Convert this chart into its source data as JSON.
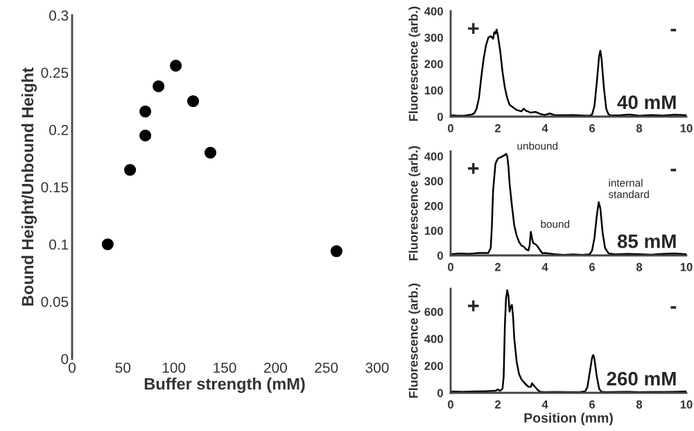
{
  "chart_data": [
    {
      "type": "scatter",
      "xlabel": "Buffer strength (mM)",
      "ylabel": "Bound Height/Unbound Height",
      "xlim": [
        0,
        300
      ],
      "ylim": [
        0,
        0.3
      ],
      "xticks": [
        0,
        50,
        100,
        150,
        200,
        250,
        300
      ],
      "yticks": [
        0,
        0.05,
        0.1,
        0.15,
        0.2,
        0.25,
        0.3
      ],
      "marker": "circle",
      "grid": false,
      "series": [
        {
          "color": "#000000",
          "x": [
            35,
            57,
            72,
            72,
            85,
            102,
            119,
            136,
            260
          ],
          "values": [
            0.1,
            0.165,
            0.195,
            0.216,
            0.238,
            0.256,
            0.225,
            0.18,
            0.094
          ]
        }
      ]
    },
    {
      "type": "line",
      "ylabel": "Fluorescence (arb.)",
      "xlim": [
        0,
        10
      ],
      "ylim": [
        0,
        400
      ],
      "xticks": [
        0,
        2,
        4,
        6,
        8,
        10
      ],
      "yticks": [
        0,
        100,
        200,
        300,
        400
      ],
      "grid": false,
      "annotations": [
        "+",
        "-",
        "40 mM"
      ],
      "series": [
        {
          "color": "#000000",
          "x": [
            0,
            0.3,
            0.6,
            0.9,
            1.0,
            1.1,
            1.2,
            1.3,
            1.4,
            1.5,
            1.6,
            1.7,
            1.8,
            1.85,
            1.9,
            1.95,
            2.0,
            2.1,
            2.2,
            2.3,
            2.4,
            2.5,
            2.6,
            2.8,
            3.0,
            3.1,
            3.2,
            3.4,
            3.6,
            3.8,
            4.0,
            4.2,
            4.4,
            4.8,
            5.2,
            5.6,
            5.9,
            6.0,
            6.1,
            6.2,
            6.3,
            6.35,
            6.4,
            6.5,
            6.6,
            6.7,
            6.8,
            7.2,
            7.6,
            8.0,
            8.5,
            9.0,
            9.5,
            10
          ],
          "values": [
            5,
            3,
            4,
            8,
            12,
            30,
            70,
            150,
            220,
            270,
            300,
            305,
            295,
            320,
            315,
            330,
            310,
            250,
            170,
            110,
            70,
            45,
            38,
            25,
            20,
            30,
            22,
            15,
            18,
            10,
            6,
            12,
            6,
            5,
            6,
            4,
            3,
            8,
            40,
            130,
            230,
            250,
            220,
            110,
            30,
            8,
            4,
            5,
            8,
            3,
            6,
            4,
            7,
            5
          ]
        }
      ]
    },
    {
      "type": "line",
      "ylabel": "Fluorescence (arb.)",
      "xlim": [
        0,
        10
      ],
      "ylim": [
        0,
        420
      ],
      "xticks": [
        0,
        2,
        4,
        6,
        8,
        10
      ],
      "yticks": [
        0,
        100,
        200,
        300,
        400
      ],
      "grid": false,
      "annotations": [
        "+",
        "-",
        "85 mM",
        {
          "text": "unbound",
          "x": 2.4,
          "y": 410
        },
        {
          "text": "bound",
          "x": 3.4,
          "y": 95
        },
        {
          "text": "internal standard",
          "x": 6.28,
          "y": 215
        }
      ],
      "series": [
        {
          "color": "#000000",
          "x": [
            0,
            0.4,
            0.8,
            1.2,
            1.6,
            1.7,
            1.75,
            1.8,
            1.9,
            2.0,
            2.1,
            2.2,
            2.3,
            2.35,
            2.4,
            2.45,
            2.5,
            2.6,
            2.7,
            2.8,
            2.9,
            3.0,
            3.1,
            3.2,
            3.3,
            3.35,
            3.4,
            3.45,
            3.5,
            3.6,
            3.7,
            3.8,
            3.9,
            4.0,
            4.4,
            4.8,
            5.2,
            5.6,
            5.9,
            6.0,
            6.1,
            6.2,
            6.28,
            6.35,
            6.45,
            6.55,
            6.7,
            7.0,
            7.5,
            8.0,
            8.5,
            9.0,
            9.5,
            10
          ],
          "values": [
            5,
            8,
            6,
            10,
            10,
            30,
            120,
            260,
            370,
            390,
            395,
            400,
            405,
            410,
            400,
            360,
            290,
            200,
            120,
            80,
            55,
            40,
            35,
            25,
            20,
            40,
            95,
            70,
            50,
            45,
            35,
            20,
            8,
            10,
            5,
            2,
            4,
            2,
            5,
            20,
            70,
            160,
            215,
            190,
            90,
            30,
            8,
            4,
            6,
            5,
            3,
            6,
            8,
            5
          ]
        }
      ]
    },
    {
      "type": "line",
      "xlabel": "Position (mm)",
      "ylabel": "Fluorescence (arb.)",
      "xlim": [
        0,
        10
      ],
      "ylim": [
        0,
        770
      ],
      "xticks": [
        0,
        2,
        4,
        6,
        8,
        10
      ],
      "yticks": [
        0,
        200,
        400,
        600
      ],
      "grid": false,
      "annotations": [
        "+",
        "-",
        "260 mM"
      ],
      "series": [
        {
          "color": "#000000",
          "x": [
            0,
            0.5,
            1.0,
            1.5,
            1.9,
            2.0,
            2.1,
            2.2,
            2.25,
            2.3,
            2.35,
            2.4,
            2.45,
            2.5,
            2.55,
            2.6,
            2.65,
            2.7,
            2.8,
            2.9,
            3.0,
            3.1,
            3.2,
            3.3,
            3.4,
            3.45,
            3.5,
            3.6,
            3.7,
            3.8,
            4.0,
            4.5,
            5.0,
            5.5,
            5.7,
            5.8,
            5.9,
            6.0,
            6.05,
            6.1,
            6.2,
            6.3,
            6.4,
            6.6,
            7.0,
            7.5,
            8.0,
            8.5,
            9.0,
            9.5,
            10
          ],
          "values": [
            10,
            8,
            10,
            12,
            15,
            25,
            15,
            30,
            120,
            500,
            700,
            760,
            720,
            600,
            640,
            650,
            560,
            400,
            230,
            140,
            100,
            80,
            60,
            45,
            45,
            70,
            60,
            40,
            20,
            8,
            5,
            6,
            5,
            6,
            10,
            40,
            150,
            260,
            280,
            250,
            120,
            30,
            8,
            5,
            6,
            8,
            5,
            7,
            6,
            8,
            10
          ]
        }
      ]
    }
  ]
}
